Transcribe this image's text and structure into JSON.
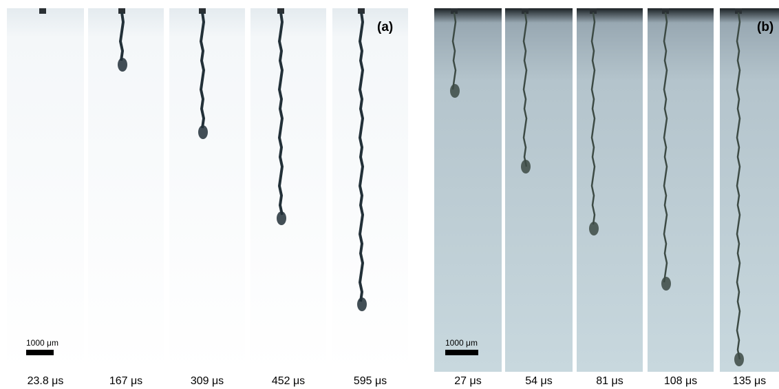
{
  "panels": [
    {
      "label": "(a)",
      "scale_bar": "1000 μm",
      "frames": [
        "23.8 μs",
        "167 μs",
        "309 μs",
        "452 μs",
        "595 μs"
      ]
    },
    {
      "label": "(b)",
      "scale_bar": "1000 μm",
      "frames": [
        "27 μs",
        "54 μs",
        "81 μs",
        "108 μs",
        "135 μs"
      ]
    }
  ]
}
